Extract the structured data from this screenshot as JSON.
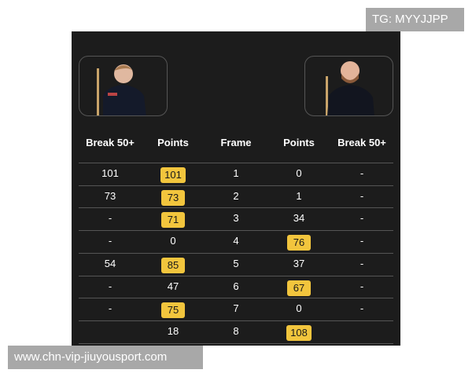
{
  "watermark_top": "TG: MYYJJPP",
  "watermark_bottom": "www.chn-vip-jiuyousport.com",
  "colors": {
    "panel": "#1c1c1c",
    "highlight": "#f2c53d"
  },
  "headers": [
    "Break 50+",
    "Points",
    "Frame",
    "Points",
    "Break 50+"
  ],
  "rows": [
    {
      "left_break": "101",
      "left_points": "101",
      "frame": "1",
      "right_points": "0",
      "right_break": "-",
      "winner": "left"
    },
    {
      "left_break": "73",
      "left_points": "73",
      "frame": "2",
      "right_points": "1",
      "right_break": "-",
      "winner": "left"
    },
    {
      "left_break": "-",
      "left_points": "71",
      "frame": "3",
      "right_points": "34",
      "right_break": "-",
      "winner": "left"
    },
    {
      "left_break": "-",
      "left_points": "0",
      "frame": "4",
      "right_points": "76",
      "right_break": "-",
      "winner": "right"
    },
    {
      "left_break": "54",
      "left_points": "85",
      "frame": "5",
      "right_points": "37",
      "right_break": "-",
      "winner": "left"
    },
    {
      "left_break": "-",
      "left_points": "47",
      "frame": "6",
      "right_points": "67",
      "right_break": "-",
      "winner": "right"
    },
    {
      "left_break": "-",
      "left_points": "75",
      "frame": "7",
      "right_points": "0",
      "right_break": "-",
      "winner": "left"
    },
    {
      "left_break": "",
      "left_points": "18",
      "frame": "8",
      "right_points": "108",
      "right_break": "",
      "winner": "right"
    }
  ]
}
